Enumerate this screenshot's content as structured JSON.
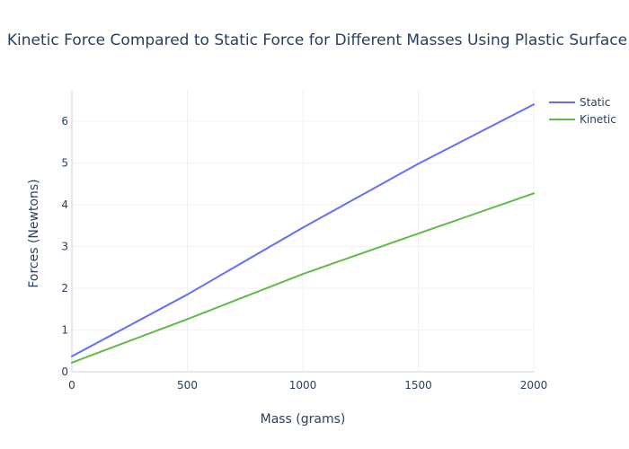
{
  "chart_data": {
    "type": "line",
    "title": "Kinetic Force Compared to Static Force for Different Masses Using Plastic Surface",
    "xlabel": "Mass (grams)",
    "ylabel": "Forces (Newtons)",
    "x": [
      0,
      500,
      1000,
      1500,
      2000
    ],
    "xlim": [
      0,
      2000
    ],
    "ylim": [
      0,
      6.75
    ],
    "x_ticks": [
      0,
      500,
      1000,
      1500,
      2000
    ],
    "y_ticks": [
      0,
      1,
      2,
      3,
      4,
      5,
      6
    ],
    "grid": true,
    "legend_position": "top-right",
    "series": [
      {
        "name": "Static",
        "color": "#636efa",
        "values": [
          0.37,
          1.85,
          3.45,
          4.98,
          6.4
        ]
      },
      {
        "name": "Kinetic",
        "color": "#5fbb46",
        "values": [
          0.22,
          1.26,
          2.34,
          3.31,
          4.27
        ]
      }
    ]
  }
}
